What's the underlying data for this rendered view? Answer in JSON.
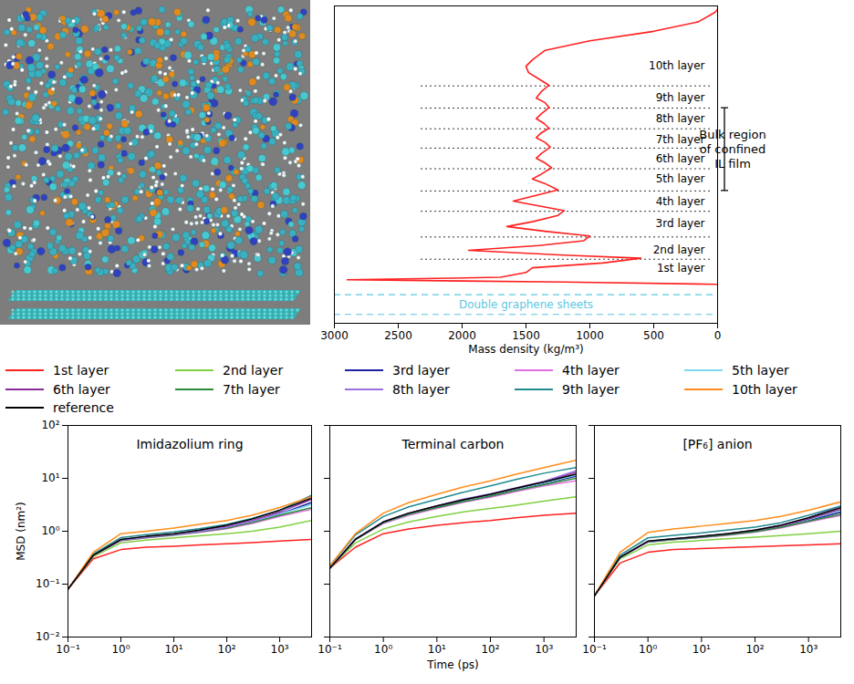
{
  "chart_data": [
    {
      "type": "line",
      "xlabel": "Mass density (kg/m³)",
      "xlim": [
        3000,
        0
      ],
      "xticks": [
        3000,
        2500,
        2000,
        1500,
        1000,
        500,
        0
      ],
      "ylim": [
        0,
        10
      ],
      "tick_labels": "x",
      "series": [
        {
          "color": "#ff2020",
          "y": [
            1.23,
            1.3,
            1.37,
            1.45,
            1.6,
            1.75,
            1.9,
            2.05,
            2.15,
            2.3,
            2.45,
            2.6,
            2.75,
            2.9,
            3.05,
            3.2,
            3.4,
            3.55,
            3.7,
            3.85,
            4.0,
            4.2,
            4.4,
            4.55,
            4.7,
            4.9,
            5.05,
            5.2,
            5.35,
            5.55,
            5.7,
            5.85,
            6.0,
            6.15,
            6.3,
            6.45,
            6.6,
            6.8,
            6.95,
            7.1,
            7.3,
            7.5,
            7.7,
            7.9,
            8.1,
            8.3,
            8.6,
            8.9,
            9.2,
            9.5,
            9.8,
            9.9
          ],
          "x": [
            0,
            1200,
            2900,
            1700,
            1500,
            1450,
            900,
            600,
            1200,
            1950,
            1400,
            1050,
            1000,
            1350,
            1650,
            1450,
            1250,
            1200,
            1400,
            1600,
            1450,
            1250,
            1350,
            1450,
            1380,
            1300,
            1350,
            1420,
            1380,
            1310,
            1350,
            1420,
            1380,
            1320,
            1360,
            1420,
            1380,
            1320,
            1350,
            1420,
            1380,
            1320,
            1400,
            1480,
            1500,
            1450,
            1350,
            1000,
            500,
            150,
            20,
            0
          ]
        }
      ],
      "layers": [
        {
          "label": "1st layer",
          "y": 1.74
        },
        {
          "label": "2nd layer",
          "y": 2.3
        },
        {
          "label": "3rd layer",
          "y": 3.14
        },
        {
          "label": "4th layer",
          "y": 3.84
        },
        {
          "label": "5th layer",
          "y": 4.54
        },
        {
          "label": "6th layer",
          "y": 5.18
        },
        {
          "label": "7th layer",
          "y": 5.8
        },
        {
          "label": "8th layer",
          "y": 6.44
        },
        {
          "label": "9th layer",
          "y": 7.11
        },
        {
          "label": "10th layer",
          "y": 8.1
        }
      ],
      "layer_boundaries": [
        2.02,
        2.72,
        3.53,
        4.17,
        4.87,
        5.52,
        6.13,
        6.78,
        7.48
      ],
      "bulk_region": {
        "label": "Bulk region of confined IL film",
        "range": [
          4.17,
          6.78
        ]
      },
      "graphene": {
        "label": "Double graphene sheets",
        "y": [
          0.28,
          0.9
        ],
        "color": "#5bc8e0"
      }
    },
    {
      "type": "line",
      "title": "Imidazolium ring",
      "log": true,
      "legend": "top",
      "ylabel": "MSD (nm²)",
      "x": [
        0.1,
        0.3,
        1,
        3,
        10,
        30,
        100,
        300,
        1000,
        4000
      ],
      "xlim": [
        0.1,
        4000
      ],
      "xticks": [
        {
          "value": 0.1,
          "label": "10⁻¹"
        },
        {
          "value": 1,
          "label": "10⁰"
        },
        {
          "value": 10,
          "label": "10¹"
        },
        {
          "value": 100,
          "label": "10²"
        },
        {
          "value": 1000,
          "label": "10³"
        }
      ],
      "ylim": [
        0.01,
        100
      ],
      "yticks": [
        {
          "value": 0.01,
          "label": "10⁻²"
        },
        {
          "value": 0.1,
          "label": "10⁻¹"
        },
        {
          "value": 1,
          "label": "10⁰"
        },
        {
          "value": 10,
          "label": "10¹"
        },
        {
          "value": 100,
          "label": "10²"
        }
      ],
      "series": [
        {
          "name": "1st layer",
          "color": "#ff2020",
          "values": [
            0.08,
            0.3,
            0.45,
            0.5,
            0.52,
            0.55,
            0.58,
            0.61,
            0.65,
            0.7
          ]
        },
        {
          "name": "2nd layer",
          "color": "#80d040",
          "values": [
            0.08,
            0.33,
            0.6,
            0.68,
            0.75,
            0.82,
            0.9,
            1.0,
            1.2,
            1.6
          ]
        },
        {
          "name": "3rd layer",
          "color": "#2020a0",
          "values": [
            0.08,
            0.35,
            0.68,
            0.78,
            0.88,
            1.0,
            1.2,
            1.5,
            2.1,
            3.5
          ]
        },
        {
          "name": "4th layer",
          "color": "#e070e0",
          "values": [
            0.08,
            0.35,
            0.66,
            0.75,
            0.84,
            0.95,
            1.12,
            1.4,
            1.9,
            2.6
          ]
        },
        {
          "name": "5th layer",
          "color": "#80d8f0",
          "values": [
            0.08,
            0.35,
            0.68,
            0.77,
            0.86,
            0.98,
            1.18,
            1.5,
            2.1,
            3.2
          ]
        },
        {
          "name": "6th layer",
          "color": "#8a2b9a",
          "values": [
            0.08,
            0.35,
            0.69,
            0.79,
            0.89,
            1.02,
            1.25,
            1.6,
            2.3,
            4.0
          ]
        },
        {
          "name": "7th layer",
          "color": "#2a8a3a",
          "values": [
            0.08,
            0.35,
            0.67,
            0.76,
            0.85,
            0.97,
            1.15,
            1.45,
            2.0,
            2.8
          ]
        },
        {
          "name": "8th layer",
          "color": "#9a70e0",
          "values": [
            0.08,
            0.35,
            0.68,
            0.77,
            0.87,
            0.99,
            1.2,
            1.55,
            2.2,
            4.6
          ]
        },
        {
          "name": "9th layer",
          "color": "#208a90",
          "values": [
            0.08,
            0.37,
            0.76,
            0.86,
            0.97,
            1.12,
            1.35,
            1.75,
            2.5,
            4.8
          ]
        },
        {
          "name": "10th layer",
          "color": "#ff8c1a",
          "values": [
            0.08,
            0.4,
            0.9,
            1.0,
            1.15,
            1.35,
            1.6,
            2.0,
            2.8,
            4.5
          ]
        },
        {
          "name": "reference",
          "color": "#000000",
          "values": [
            0.08,
            0.35,
            0.7,
            0.8,
            0.9,
            1.05,
            1.3,
            1.7,
            2.5,
            4.2
          ]
        }
      ]
    },
    {
      "type": "line",
      "title": "Terminal carbon",
      "log": true,
      "tick_labels": "x",
      "xlabel": "Time (ps)",
      "x": [
        0.1,
        0.3,
        1,
        3,
        10,
        30,
        100,
        300,
        1000,
        4000
      ],
      "xlim": [
        0.1,
        4000
      ],
      "xticks": [
        {
          "value": 0.1,
          "label": "10⁻¹"
        },
        {
          "value": 1,
          "label": "10⁰"
        },
        {
          "value": 10,
          "label": "10¹"
        },
        {
          "value": 100,
          "label": "10²"
        },
        {
          "value": 1000,
          "label": "10³"
        }
      ],
      "ylim": [
        0.01,
        100
      ],
      "yticks": [
        0.01,
        0.1,
        1,
        10,
        100
      ],
      "series": [
        {
          "name": "1st layer",
          "color": "#ff2020",
          "values": [
            0.2,
            0.5,
            0.9,
            1.1,
            1.3,
            1.45,
            1.6,
            1.8,
            2.0,
            2.2
          ]
        },
        {
          "name": "2nd layer",
          "color": "#80d040",
          "values": [
            0.2,
            0.6,
            1.1,
            1.5,
            1.9,
            2.3,
            2.7,
            3.1,
            3.7,
            4.5
          ]
        },
        {
          "name": "3rd layer",
          "color": "#2020a0",
          "values": [
            0.2,
            0.7,
            1.45,
            2.1,
            2.8,
            3.6,
            4.6,
            6.0,
            8.0,
            11
          ]
        },
        {
          "name": "4th layer",
          "color": "#e070e0",
          "values": [
            0.2,
            0.7,
            1.4,
            2.0,
            2.7,
            3.5,
            4.4,
            5.6,
            7.2,
            9.0
          ]
        },
        {
          "name": "5th layer",
          "color": "#80d8f0",
          "values": [
            0.2,
            0.7,
            1.45,
            2.1,
            2.9,
            3.8,
            4.8,
            6.2,
            8.2,
            11.5
          ]
        },
        {
          "name": "6th layer",
          "color": "#8a2b9a",
          "values": [
            0.2,
            0.7,
            1.5,
            2.2,
            3.0,
            3.9,
            5.0,
            6.4,
            8.6,
            13
          ]
        },
        {
          "name": "7th layer",
          "color": "#2a8a3a",
          "values": [
            0.2,
            0.7,
            1.45,
            2.1,
            2.8,
            3.6,
            4.6,
            5.9,
            7.6,
            10
          ]
        },
        {
          "name": "8th layer",
          "color": "#9a70e0",
          "values": [
            0.2,
            0.72,
            1.5,
            2.2,
            3.0,
            4.0,
            5.1,
            6.6,
            8.8,
            14
          ]
        },
        {
          "name": "9th layer",
          "color": "#208a90",
          "values": [
            0.22,
            0.85,
            1.9,
            2.9,
            4.0,
            5.4,
            7.2,
            9.5,
            12.5,
            16
          ]
        },
        {
          "name": "10th layer",
          "color": "#ff8c1a",
          "values": [
            0.22,
            0.9,
            2.2,
            3.5,
            5.0,
            6.8,
            9.0,
            12,
            16,
            22
          ]
        },
        {
          "name": "reference",
          "color": "#000000",
          "values": [
            0.2,
            0.7,
            1.5,
            2.2,
            3.0,
            3.9,
            5.0,
            6.5,
            8.5,
            12
          ]
        }
      ]
    },
    {
      "type": "line",
      "title": "[PF₆] anion",
      "log": true,
      "tick_labels": "x",
      "x": [
        0.1,
        0.3,
        1,
        3,
        10,
        30,
        100,
        300,
        1000,
        4000
      ],
      "xlim": [
        0.1,
        4000
      ],
      "xticks": [
        {
          "value": 0.1,
          "label": "10⁻¹"
        },
        {
          "value": 1,
          "label": "10⁰"
        },
        {
          "value": 10,
          "label": "10¹"
        },
        {
          "value": 100,
          "label": "10²"
        },
        {
          "value": 1000,
          "label": "10³"
        }
      ],
      "ylim": [
        0.01,
        100
      ],
      "yticks": [
        0.01,
        0.1,
        1,
        10,
        100
      ],
      "series": [
        {
          "name": "1st layer",
          "color": "#ff2020",
          "values": [
            0.06,
            0.25,
            0.4,
            0.45,
            0.47,
            0.49,
            0.51,
            0.53,
            0.55,
            0.58
          ]
        },
        {
          "name": "2nd layer",
          "color": "#80d040",
          "values": [
            0.06,
            0.3,
            0.55,
            0.62,
            0.67,
            0.72,
            0.77,
            0.83,
            0.9,
            1.0
          ]
        },
        {
          "name": "3rd layer",
          "color": "#2020a0",
          "values": [
            0.06,
            0.32,
            0.63,
            0.7,
            0.77,
            0.86,
            1.0,
            1.2,
            1.6,
            2.3
          ]
        },
        {
          "name": "4th layer",
          "color": "#e070e0",
          "values": [
            0.06,
            0.32,
            0.62,
            0.69,
            0.76,
            0.84,
            0.96,
            1.15,
            1.5,
            2.0
          ]
        },
        {
          "name": "5th layer",
          "color": "#80d8f0",
          "values": [
            0.06,
            0.32,
            0.63,
            0.7,
            0.78,
            0.87,
            1.0,
            1.22,
            1.65,
            2.5
          ]
        },
        {
          "name": "6th layer",
          "color": "#8a2b9a",
          "values": [
            0.06,
            0.32,
            0.64,
            0.71,
            0.79,
            0.88,
            1.02,
            1.25,
            1.7,
            2.6
          ]
        },
        {
          "name": "7th layer",
          "color": "#2a8a3a",
          "values": [
            0.06,
            0.32,
            0.63,
            0.7,
            0.77,
            0.85,
            0.98,
            1.18,
            1.55,
            2.1
          ]
        },
        {
          "name": "8th layer",
          "color": "#9a70e0",
          "values": [
            0.06,
            0.32,
            0.64,
            0.72,
            0.8,
            0.9,
            1.05,
            1.3,
            1.8,
            3.0
          ]
        },
        {
          "name": "9th layer",
          "color": "#208a90",
          "values": [
            0.06,
            0.35,
            0.75,
            0.84,
            0.93,
            1.05,
            1.2,
            1.45,
            2.0,
            3.0
          ]
        },
        {
          "name": "10th layer",
          "color": "#ff8c1a",
          "values": [
            0.06,
            0.4,
            0.95,
            1.1,
            1.25,
            1.4,
            1.6,
            1.9,
            2.5,
            3.6
          ]
        },
        {
          "name": "reference",
          "color": "#000000",
          "values": [
            0.06,
            0.32,
            0.65,
            0.72,
            0.8,
            0.9,
            1.05,
            1.3,
            1.8,
            2.8
          ]
        }
      ]
    }
  ]
}
